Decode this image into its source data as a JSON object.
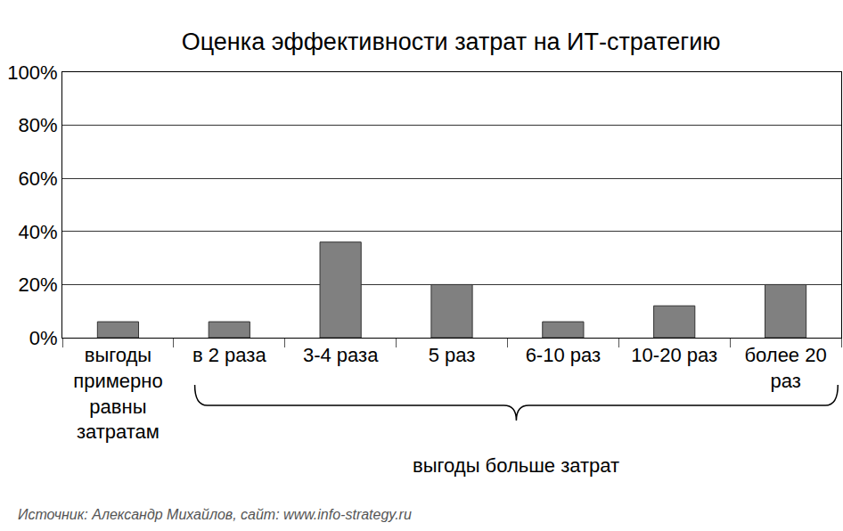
{
  "chart_data": {
    "type": "bar",
    "title": "Оценка эффективности затрат на ИТ-стратегию",
    "categories": [
      "выгоды примерно равны затратам",
      "в 2 раза",
      "3-4 раза",
      "5 раз",
      "6-10 раз",
      "10-20 раз",
      "более 20 раз"
    ],
    "values": [
      6,
      6,
      36,
      20,
      6,
      12,
      20
    ],
    "color": "#808080",
    "ylim": [
      0,
      100
    ],
    "yticks": [
      {
        "value": 0,
        "label": "0%"
      },
      {
        "value": 20,
        "label": "20%"
      },
      {
        "value": 40,
        "label": "40%"
      },
      {
        "value": 60,
        "label": "60%"
      },
      {
        "value": 80,
        "label": "80%"
      },
      {
        "value": 100,
        "label": "100%"
      }
    ],
    "grid": true,
    "group_label": "выгоды больше затрат",
    "source": "Источник: Александр Михайлов, сайт: www.info-strategy.ru"
  }
}
